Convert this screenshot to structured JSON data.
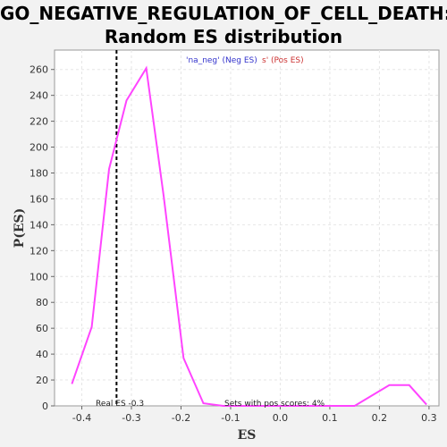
{
  "title_line1": "GO_NEGATIVE_REGULATION_OF_CELL_DEATH:",
  "title_line2": "Random ES distribution",
  "legend": {
    "neg": {
      "text": "'na_neg' (Neg ES)",
      "color": "#3333cc"
    },
    "pos": {
      "text": "s' (Pos ES)",
      "color": "#cc3333"
    }
  },
  "annotations": {
    "real_es": "Real ES -0.3",
    "pos_scores": "Sets with pos scores: 4%"
  },
  "colors": {
    "line": "#ff44ff",
    "real_es_line": "#000000",
    "grid": "#e6e6e6"
  },
  "chart_data": {
    "type": "line",
    "title": "GO_NEGATIVE_REGULATION_OF_CELL_DEATH: Random ES distribution",
    "xlabel": "ES",
    "ylabel": "P(ES)",
    "xlim": [
      -0.455,
      0.32
    ],
    "ylim": [
      0,
      275
    ],
    "xticks": [
      -0.4,
      -0.3,
      -0.2,
      -0.1,
      0.0,
      0.1,
      0.2,
      0.3
    ],
    "xtick_labels": [
      "-0.4",
      "-0.3",
      "-0.2",
      "-0.1",
      "0.0",
      "0.1",
      "0.2",
      "0.3"
    ],
    "yticks": [
      0,
      20,
      40,
      60,
      80,
      100,
      120,
      140,
      160,
      180,
      200,
      220,
      240,
      260
    ],
    "grid": true,
    "real_es": -0.33,
    "series": [
      {
        "x": [
          -0.42,
          -0.38,
          -0.345,
          -0.31,
          -0.27,
          -0.235,
          -0.195,
          -0.155,
          -0.115,
          -0.08,
          0.15,
          0.22,
          0.26,
          0.295
        ],
        "y": [
          17,
          61,
          183,
          236,
          261,
          162,
          37,
          2,
          0,
          0,
          0,
          16,
          16,
          1
        ]
      }
    ]
  }
}
